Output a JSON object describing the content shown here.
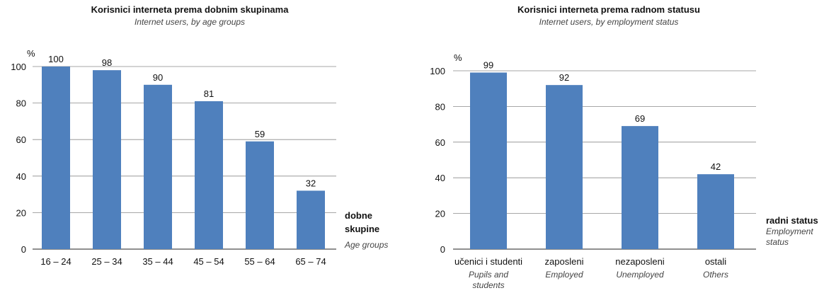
{
  "chart_data": [
    {
      "type": "bar",
      "title": "Korisnici interneta prema dobnim skupinama",
      "subtitle": "Internet users, by age groups",
      "ylabel": "%",
      "xlabel": "dobne skupine",
      "xlabel_lines": [
        "dobne",
        "skupine"
      ],
      "xlabel_en": "Age groups",
      "ylim": [
        0,
        100
      ],
      "yticks": [
        "0",
        "20",
        "40",
        "60",
        "80",
        "100"
      ],
      "grid": true,
      "categories": [
        "16 – 24",
        "25 – 34",
        "35 – 44",
        "45 – 54",
        "55 – 64",
        "65 – 74"
      ],
      "values": [
        100,
        98,
        90,
        81,
        59,
        32
      ],
      "color": "#4f80bd"
    },
    {
      "type": "bar",
      "title": "Korisnici interneta prema radnom statusu",
      "subtitle": "Internet users, by employment status",
      "ylabel": "%",
      "xlabel": "radni status",
      "xlabel_en": "Employment status",
      "xlabel_en_lines": [
        "Employment",
        "status"
      ],
      "ylim": [
        0,
        100
      ],
      "yticks": [
        "0",
        "20",
        "40",
        "60",
        "80",
        "100"
      ],
      "grid": true,
      "categories": [
        "učenici i studenti",
        "zaposleni",
        "nezaposleni",
        "ostali"
      ],
      "categories_en": [
        "Pupils and students",
        "Employed",
        "Unemployed",
        "Others"
      ],
      "categories_en_lines": [
        [
          "Pupils and",
          "students"
        ],
        [
          "Employed"
        ],
        [
          "Unemployed"
        ],
        [
          "Others"
        ]
      ],
      "values": [
        99,
        92,
        69,
        42
      ],
      "color": "#4f80bd"
    }
  ]
}
